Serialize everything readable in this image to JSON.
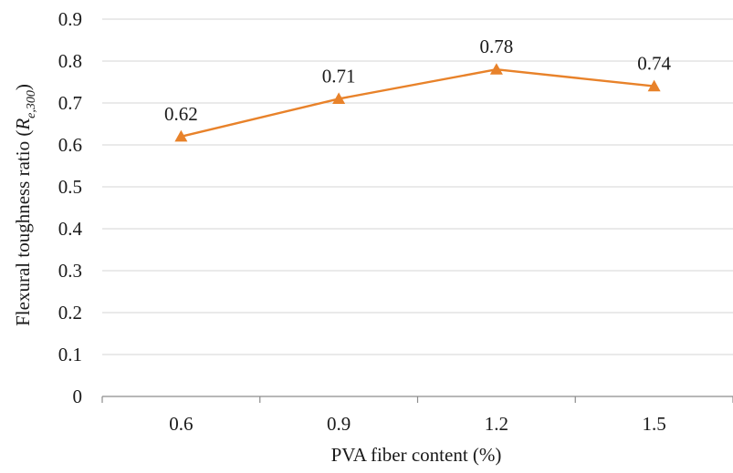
{
  "chart_data": {
    "type": "line",
    "categories": [
      "0.6",
      "0.9",
      "1.2",
      "1.5"
    ],
    "values": [
      0.62,
      0.71,
      0.78,
      0.74
    ],
    "data_labels": [
      "0.62",
      "0.71",
      "0.78",
      "0.74"
    ],
    "title": "",
    "xlabel": "PVA fiber content (%)",
    "ylabel": {
      "prefix": "Flexural toughness ratio (",
      "symbol": "R",
      "subscript": "e,300",
      "suffix": ")"
    },
    "ylim": [
      0,
      0.9
    ],
    "y_ticks": [
      "0",
      "0.1",
      "0.2",
      "0.3",
      "0.4",
      "0.5",
      "0.6",
      "0.7",
      "0.8",
      "0.9"
    ],
    "grid": "horizontal",
    "legend": "none",
    "marker": "triangle",
    "series_color": "#e8822a"
  }
}
